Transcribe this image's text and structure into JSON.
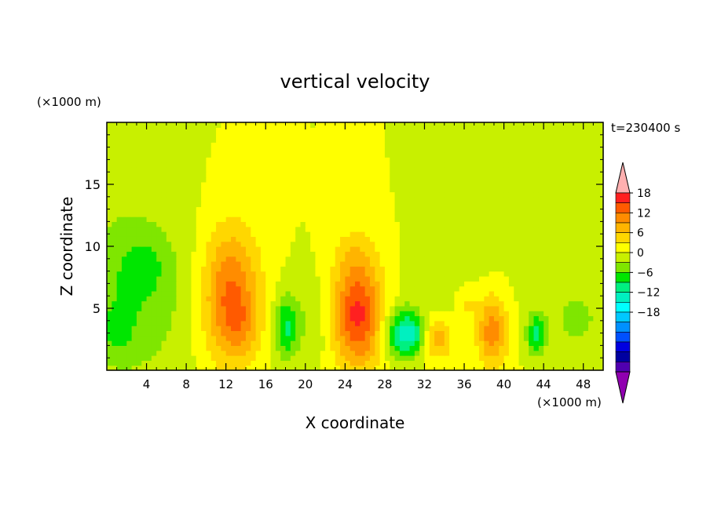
{
  "chart_data": {
    "type": "heatmap",
    "title": "vertical velocity",
    "xlabel": "X coordinate",
    "ylabel": "Z coordinate",
    "x_unit": "(×1000 m)",
    "y_unit": "(×1000 m)",
    "time_label": "t=230400 s",
    "xlim": [
      0,
      50
    ],
    "ylim": [
      0,
      20
    ],
    "x_ticks": [
      4,
      8,
      12,
      16,
      20,
      24,
      28,
      32,
      36,
      40,
      44,
      48
    ],
    "y_ticks": [
      5,
      10,
      15
    ],
    "colorbar": {
      "range": [
        -21,
        21
      ],
      "step": 3,
      "labels": [
        18,
        12,
        6,
        0,
        -6,
        -12,
        -18
      ],
      "colors": [
        "#ffb0b0",
        "#ff2020",
        "#ff5a00",
        "#ff8c00",
        "#ffb400",
        "#ffd700",
        "#ffff00",
        "#c8f000",
        "#7fe600",
        "#00e600",
        "#00f080",
        "#00f0c0",
        "#00ffff",
        "#00c8ff",
        "#0090ff",
        "#0050ff",
        "#0000e0",
        "#0000a0",
        "#5000b0",
        "#9000b0"
      ]
    },
    "features": [
      {
        "x": 12.5,
        "z": 6.0,
        "sx": 2.0,
        "sz": 3.8,
        "w": 13
      },
      {
        "x": 13.5,
        "z": 3.5,
        "sx": 1.2,
        "sz": 1.5,
        "w": 3
      },
      {
        "x": 25.3,
        "z": 4.5,
        "sx": 1.8,
        "sz": 3.0,
        "w": 16
      },
      {
        "x": 25.0,
        "z": 9.5,
        "sx": 1.5,
        "sz": 1.5,
        "w": 3
      },
      {
        "x": 33.3,
        "z": 2.6,
        "sx": 1.1,
        "sz": 1.2,
        "w": 8
      },
      {
        "x": 38.8,
        "z": 3.2,
        "sx": 1.1,
        "sz": 2.0,
        "w": 11
      },
      {
        "x": 36.2,
        "z": 5.5,
        "sx": 0.8,
        "sz": 1.0,
        "w": 4
      },
      {
        "x": 2.5,
        "z": 6.5,
        "sx": 4.0,
        "sz": 5.0,
        "w": -6
      },
      {
        "x": 3.8,
        "z": 8.5,
        "sx": 1.4,
        "sz": 1.5,
        "w": -3
      },
      {
        "x": 1.0,
        "z": 3.0,
        "sx": 1.2,
        "sz": 1.5,
        "w": -3
      },
      {
        "x": 18.0,
        "z": 3.5,
        "sx": 0.8,
        "sz": 1.8,
        "w": -9
      },
      {
        "x": 20.5,
        "z": 3.8,
        "sx": 1.5,
        "sz": 2.5,
        "w": -3
      },
      {
        "x": 29.8,
        "z": 3.0,
        "sx": 1.3,
        "sz": 1.4,
        "w": -13
      },
      {
        "x": 31.2,
        "z": 2.8,
        "sx": 0.8,
        "sz": 1.0,
        "w": -4
      },
      {
        "x": 43.3,
        "z": 2.9,
        "sx": 0.7,
        "sz": 1.2,
        "w": -10
      },
      {
        "x": 47.5,
        "z": 4.0,
        "sx": 1.5,
        "sz": 1.5,
        "w": -4
      },
      {
        "x": 34.5,
        "z": 7.0,
        "sx": 3.0,
        "sz": 3.0,
        "w": -1.5
      },
      {
        "x": 45.0,
        "z": 8.0,
        "sx": 2.5,
        "sz": 3.0,
        "w": -1.5
      }
    ]
  }
}
